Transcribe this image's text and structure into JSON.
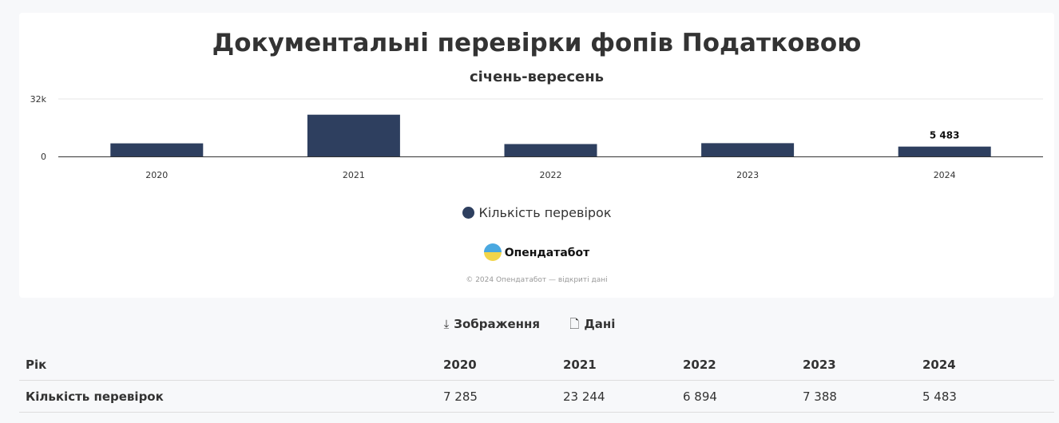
{
  "title": "Документальні перевірки фопів Податковою",
  "subtitle": "січень-вересень",
  "chart_data": {
    "type": "bar",
    "title": "Документальні перевірки фопів Податковою",
    "subtitle": "січень-вересень",
    "categories": [
      "2020",
      "2021",
      "2022",
      "2023",
      "2024"
    ],
    "series": [
      {
        "name": "Кількість перевірок",
        "values": [
          7285,
          23244,
          6894,
          7388,
          5483
        ],
        "color": "#2e3f5f"
      }
    ],
    "y_ticks": [
      "0",
      "32k"
    ],
    "ylim": [
      0,
      32000
    ],
    "data_labels": {
      "2024": "5 483"
    },
    "legend": "bottom-center",
    "grid": true
  },
  "logo": "Опендатабот",
  "copyright": "© 2024 Опендатабот — відкриті дані",
  "actions": {
    "image": "Зображення",
    "data": "Дані"
  },
  "table": {
    "header": [
      "Рік",
      "2020",
      "2021",
      "2022",
      "2023",
      "2024"
    ],
    "rows": [
      [
        "Кількість перевірок",
        "7 285",
        "23 244",
        "6 894",
        "7 388",
        "5 483"
      ]
    ]
  }
}
